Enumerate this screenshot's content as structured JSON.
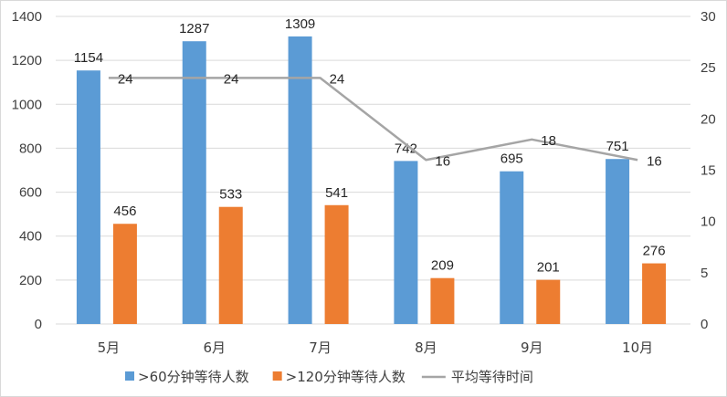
{
  "chart_data": {
    "type": "bar",
    "categories": [
      "5月",
      "6月",
      "7月",
      "8月",
      "9月",
      "10月"
    ],
    "series": [
      {
        "name": ">60分钟等待人数",
        "type": "bar",
        "axis": "left",
        "color": "#5b9bd5",
        "values": [
          1154,
          1287,
          1309,
          742,
          695,
          751
        ]
      },
      {
        "name": ">120分钟等待人数",
        "type": "bar",
        "axis": "right_scale_left",
        "color": "#ed7d31",
        "values": [
          456,
          533,
          541,
          209,
          201,
          276
        ]
      },
      {
        "name": "平均等待时间",
        "type": "line",
        "axis": "right",
        "color": "#a5a5a5",
        "values": [
          24,
          24,
          24,
          16,
          18,
          16
        ]
      }
    ],
    "y_left": {
      "min": 0,
      "max": 1400,
      "ticks": [
        "0",
        "200",
        "400",
        "600",
        "800",
        "1000",
        "1200",
        "1400"
      ]
    },
    "y_right": {
      "min": 0,
      "max": 30,
      "ticks": [
        "0",
        "5",
        "10",
        "15",
        "20",
        "25",
        "30"
      ]
    },
    "grid": true,
    "legend_position": "bottom",
    "data_labels": true
  }
}
